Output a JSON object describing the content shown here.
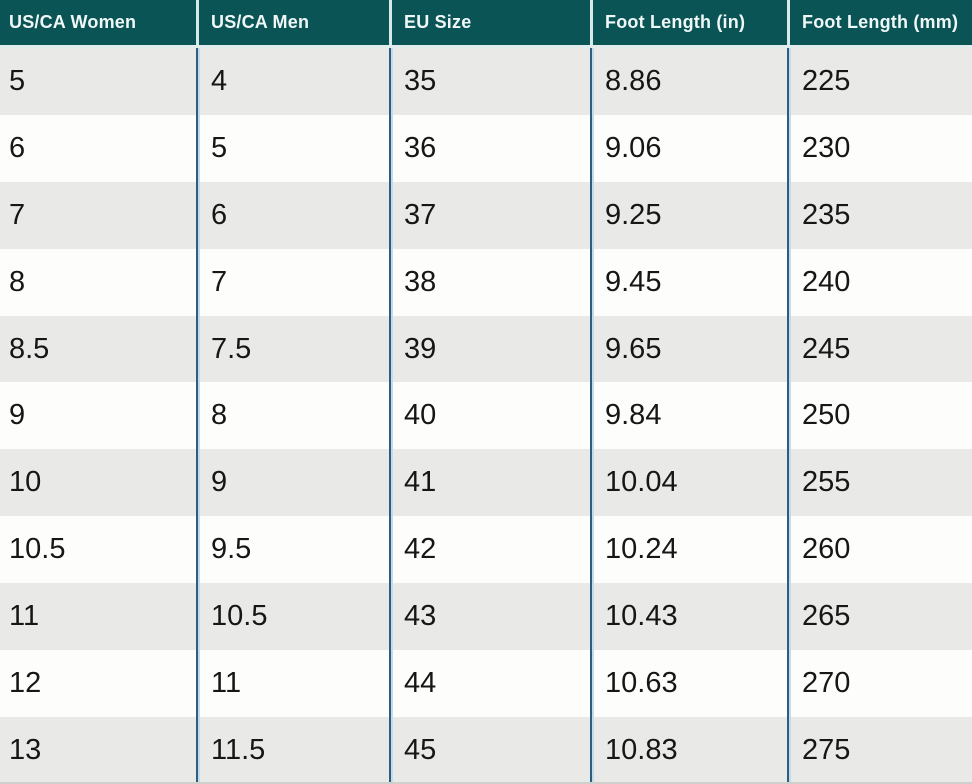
{
  "chart_data": {
    "type": "table",
    "columns": [
      "US/CA Women",
      "US/CA Men",
      "EU Size",
      "Foot Length (in)",
      "Foot Length (mm)"
    ],
    "rows": [
      [
        "5",
        "4",
        "35",
        "8.86",
        "225"
      ],
      [
        "6",
        "5",
        "36",
        "9.06",
        "230"
      ],
      [
        "7",
        "6",
        "37",
        "9.25",
        "235"
      ],
      [
        "8",
        "7",
        "38",
        "9.45",
        "240"
      ],
      [
        "8.5",
        "7.5",
        "39",
        "9.65",
        "245"
      ],
      [
        "9",
        "8",
        "40",
        "9.84",
        "250"
      ],
      [
        "10",
        "9",
        "41",
        "10.04",
        "255"
      ],
      [
        "10.5",
        "9.5",
        "42",
        "10.24",
        "260"
      ],
      [
        "11",
        "10.5",
        "43",
        "10.43",
        "265"
      ],
      [
        "12",
        "11",
        "44",
        "10.63",
        "270"
      ],
      [
        "13",
        "11.5",
        "45",
        "10.83",
        "275"
      ]
    ]
  },
  "colors": {
    "header_bg": "#0a5456",
    "header_text": "#f0f7f7",
    "row_stripe_bg": "#e9e9e7",
    "row_plain_bg": "#fdfdfc",
    "divider": "#2d5e82",
    "cell_text": "#161616"
  }
}
